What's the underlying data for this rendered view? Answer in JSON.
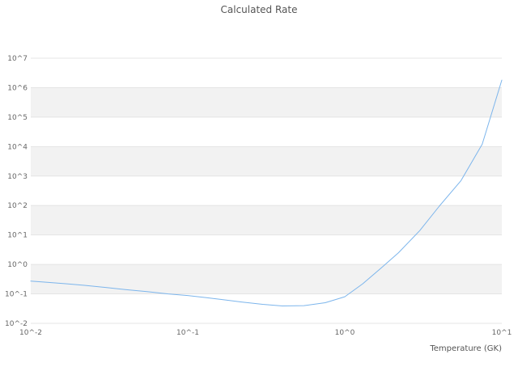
{
  "chart_data": {
    "type": "line",
    "title": "Calculated Rate",
    "xlabel": "Temperature (GK)",
    "ylabel": "",
    "x_scale": "log",
    "y_scale": "log",
    "xlim": [
      0.01,
      10
    ],
    "ylim": [
      0.01,
      10000000
    ],
    "grid": true,
    "legend": "none",
    "line_color": "#7cb5ec",
    "band_color": "#f2f2f2",
    "gridline_color": "#e4e4e4",
    "tick_text_color": "#666666",
    "title_text_color": "#555555",
    "x_ticks": [
      {
        "value": 0.01,
        "label": "10^-2"
      },
      {
        "value": 0.1,
        "label": "10^-1"
      },
      {
        "value": 1,
        "label": "10^0"
      },
      {
        "value": 10,
        "label": "10^1"
      }
    ],
    "y_ticks": [
      {
        "value": 0.01,
        "label": "10^-2"
      },
      {
        "value": 0.1,
        "label": "10^-1"
      },
      {
        "value": 1,
        "label": "10^0"
      },
      {
        "value": 10,
        "label": "10^1"
      },
      {
        "value": 100,
        "label": "10^2"
      },
      {
        "value": 1000,
        "label": "10^3"
      },
      {
        "value": 10000,
        "label": "10^4"
      },
      {
        "value": 100000,
        "label": "10^5"
      },
      {
        "value": 1000000,
        "label": "10^6"
      },
      {
        "value": 10000000,
        "label": "10^7"
      }
    ],
    "series": [
      {
        "name": "calculated-rate",
        "x": [
          0.01,
          0.013,
          0.017,
          0.022,
          0.03,
          0.04,
          0.055,
          0.075,
          0.1,
          0.13,
          0.17,
          0.22,
          0.3,
          0.4,
          0.55,
          0.75,
          1.0,
          1.3,
          1.7,
          2.2,
          3.0,
          4.0,
          5.5,
          7.5,
          10.0
        ],
        "y": [
          0.27,
          0.245,
          0.22,
          0.195,
          0.165,
          0.14,
          0.12,
          0.1,
          0.088,
          0.075,
          0.063,
          0.053,
          0.044,
          0.039,
          0.04,
          0.05,
          0.08,
          0.22,
          0.75,
          2.5,
          14,
          95,
          700,
          12000,
          1800000
        ]
      }
    ]
  }
}
